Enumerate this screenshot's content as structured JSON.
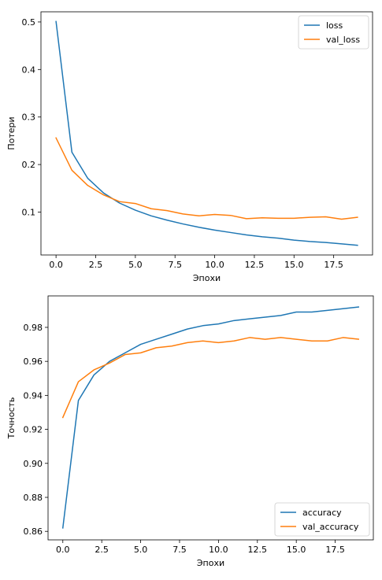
{
  "chart_data": [
    {
      "type": "line",
      "title": "",
      "xlabel": "Эпохи",
      "ylabel": "Потери",
      "xlim": [
        -0.95,
        19.95
      ],
      "ylim": [
        0.0097,
        0.5214
      ],
      "xticks": [
        0.0,
        2.5,
        5.0,
        7.5,
        10.0,
        12.5,
        15.0,
        17.5
      ],
      "xtick_labels": [
        "0.0",
        "2.5",
        "5.0",
        "7.5",
        "10.0",
        "12.5",
        "15.0",
        "17.5"
      ],
      "yticks": [
        0.1,
        0.2,
        0.3,
        0.4,
        0.5
      ],
      "ytick_labels": [
        "0.1",
        "0.2",
        "0.3",
        "0.4",
        "0.5"
      ],
      "grid": false,
      "legend": "top-right",
      "x": [
        0,
        1,
        2,
        3,
        4,
        5,
        6,
        7,
        8,
        9,
        10,
        11,
        12,
        13,
        14,
        15,
        16,
        17,
        18,
        19
      ],
      "series": [
        {
          "name": "loss",
          "color": "#1f77b4",
          "values": [
            0.501,
            0.226,
            0.171,
            0.14,
            0.119,
            0.104,
            0.092,
            0.083,
            0.075,
            0.068,
            0.062,
            0.057,
            0.052,
            0.048,
            0.045,
            0.041,
            0.038,
            0.036,
            0.033,
            0.03
          ]
        },
        {
          "name": "val_loss",
          "color": "#ff7f0e",
          "values": [
            0.256,
            0.188,
            0.156,
            0.136,
            0.122,
            0.118,
            0.107,
            0.103,
            0.096,
            0.092,
            0.095,
            0.093,
            0.086,
            0.088,
            0.087,
            0.087,
            0.089,
            0.09,
            0.085,
            0.089
          ]
        }
      ]
    },
    {
      "type": "line",
      "title": "",
      "xlabel": "Эпохи",
      "ylabel": "Точность",
      "xlim": [
        -0.95,
        19.95
      ],
      "ylim": [
        0.855,
        0.9985
      ],
      "xticks": [
        0.0,
        2.5,
        5.0,
        7.5,
        10.0,
        12.5,
        15.0,
        17.5
      ],
      "xtick_labels": [
        "0.0",
        "2.5",
        "5.0",
        "7.5",
        "10.0",
        "12.5",
        "15.0",
        "17.5"
      ],
      "yticks": [
        0.86,
        0.88,
        0.9,
        0.92,
        0.94,
        0.96,
        0.98
      ],
      "ytick_labels": [
        "0.86",
        "0.88",
        "0.90",
        "0.92",
        "0.94",
        "0.96",
        "0.98"
      ],
      "grid": false,
      "legend": "bottom-right",
      "x": [
        0,
        1,
        2,
        3,
        4,
        5,
        6,
        7,
        8,
        9,
        10,
        11,
        12,
        13,
        14,
        15,
        16,
        17,
        18,
        19
      ],
      "series": [
        {
          "name": "accuracy",
          "color": "#1f77b4",
          "values": [
            0.862,
            0.937,
            0.952,
            0.96,
            0.965,
            0.97,
            0.973,
            0.976,
            0.979,
            0.981,
            0.982,
            0.984,
            0.985,
            0.986,
            0.987,
            0.989,
            0.989,
            0.99,
            0.991,
            0.992
          ]
        },
        {
          "name": "val_accuracy",
          "color": "#ff7f0e",
          "values": [
            0.927,
            0.948,
            0.955,
            0.959,
            0.964,
            0.965,
            0.968,
            0.969,
            0.971,
            0.972,
            0.971,
            0.972,
            0.974,
            0.973,
            0.974,
            0.973,
            0.972,
            0.972,
            0.974,
            0.973
          ]
        }
      ]
    }
  ]
}
